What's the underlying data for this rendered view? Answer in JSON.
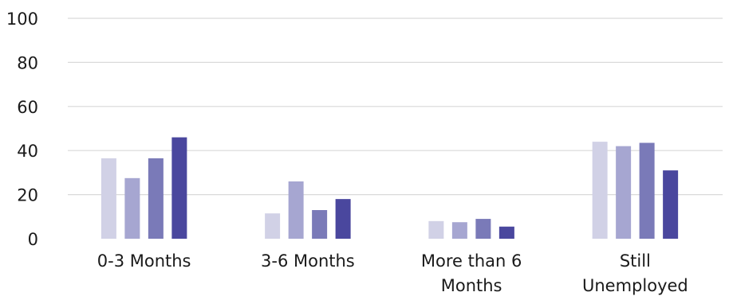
{
  "chart_data": {
    "type": "bar",
    "categories": [
      [
        "0-3 Months"
      ],
      [
        "3-6 Months"
      ],
      [
        "More than 6",
        "Months"
      ],
      [
        "Still",
        "Unemployed"
      ]
    ],
    "series": [
      {
        "color": "#d1d1e6",
        "values": [
          36.5,
          11.5,
          8,
          44
        ]
      },
      {
        "color": "#a6a6d1",
        "values": [
          27.5,
          26,
          7.5,
          42
        ]
      },
      {
        "color": "#7a7ab8",
        "values": [
          36.5,
          13,
          9,
          43.5
        ]
      },
      {
        "color": "#4a479e",
        "values": [
          46,
          18,
          5.5,
          31
        ]
      }
    ],
    "ylim": [
      0,
      100
    ],
    "yticks": [
      "0",
      "20",
      "40",
      "60",
      "80",
      "100"
    ],
    "grid": true,
    "title": "",
    "xlabel": "",
    "ylabel": ""
  }
}
